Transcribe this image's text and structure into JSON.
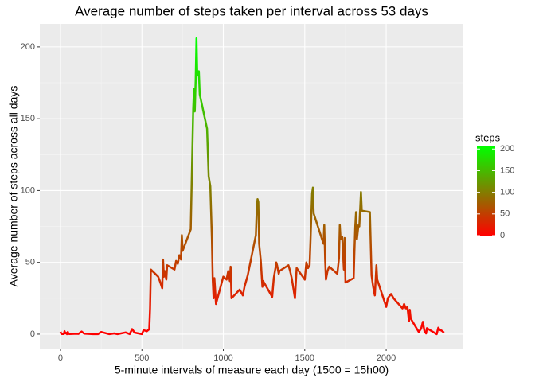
{
  "chart_data": {
    "type": "line",
    "title": "Average number of steps taken per interval across 53 days",
    "x_label": "5-minute intervals of measure each day (1500 = 15h00)",
    "y_label": "Average number of steps across all days",
    "x": [
      0,
      5,
      10,
      15,
      20,
      25,
      30,
      35,
      40,
      45,
      50,
      55,
      100,
      110,
      130,
      145,
      200,
      230,
      250,
      300,
      330,
      350,
      400,
      425,
      440,
      455,
      500,
      510,
      530,
      545,
      550,
      555,
      600,
      610,
      625,
      630,
      635,
      640,
      650,
      655,
      700,
      710,
      720,
      730,
      740,
      745,
      750,
      800,
      810,
      815,
      820,
      825,
      830,
      835,
      840,
      845,
      850,
      855,
      900,
      910,
      920,
      930,
      935,
      940,
      945,
      955,
      1000,
      1020,
      1030,
      1040,
      1045,
      1050,
      1100,
      1120,
      1130,
      1150,
      1200,
      1205,
      1210,
      1215,
      1220,
      1230,
      1240,
      1245,
      1300,
      1310,
      1320,
      1325,
      1330,
      1340,
      1345,
      1400,
      1410,
      1420,
      1430,
      1440,
      1450,
      1500,
      1510,
      1520,
      1530,
      1535,
      1540,
      1545,
      1550,
      1555,
      1615,
      1620,
      1625,
      1630,
      1640,
      1650,
      1700,
      1710,
      1715,
      1720,
      1730,
      1740,
      1745,
      1750,
      1800,
      1805,
      1810,
      1815,
      1820,
      1830,
      1835,
      1840,
      1845,
      1850,
      1900,
      1910,
      1920,
      1930,
      1940,
      1945,
      2000,
      2010,
      2030,
      2045,
      2100,
      2110,
      2120,
      2125,
      2130,
      2140,
      2145,
      2150,
      2200,
      2215,
      2225,
      2235,
      2245,
      2250,
      2310,
      2320,
      2330,
      2340,
      2350,
      2355
    ],
    "values": [
      1.7,
      0.3,
      0.1,
      0.2,
      0.1,
      2.1,
      0.5,
      0.9,
      0,
      1.5,
      0.3,
      0.1,
      0.3,
      0.2,
      1.8,
      0.4,
      0,
      0,
      1.5,
      0,
      0.5,
      0,
      1.2,
      0.1,
      3.5,
      1.1,
      0,
      2.8,
      2.1,
      3.4,
      18,
      45,
      40,
      37,
      32,
      52,
      40,
      44,
      38,
      48,
      45,
      51,
      49,
      55,
      52,
      69,
      58,
      73,
      130,
      157,
      171,
      155,
      177,
      206,
      180,
      183,
      183,
      167,
      143,
      110,
      103,
      66,
      38,
      25,
      39,
      21,
      40,
      38,
      44,
      37,
      47,
      25,
      31,
      27,
      33,
      41,
      69,
      87,
      94,
      92,
      63,
      51,
      33,
      37,
      26,
      39,
      46,
      50,
      48,
      42,
      44,
      48,
      44,
      39,
      32,
      25,
      46,
      38,
      50,
      46,
      48,
      65,
      82,
      98,
      102,
      84,
      63,
      76,
      52,
      38,
      44,
      47,
      42,
      53,
      76,
      66,
      68,
      45,
      67,
      36,
      39,
      58,
      75,
      85,
      66,
      76,
      75,
      86,
      99,
      86,
      85,
      41,
      33,
      27,
      48,
      38,
      19,
      25,
      28,
      25,
      18,
      21,
      18,
      18,
      19,
      9,
      17,
      11,
      1.5,
      3.9,
      8.6,
      2.2,
      0.5,
      4.2,
      0,
      4.5,
      2.9,
      2.5,
      1.5,
      1
    ],
    "xlim": [
      -127,
      2469
    ],
    "xticks": [
      0,
      500,
      1000,
      1500,
      2000
    ],
    "ylim": [
      -10,
      216
    ],
    "yticks": [
      0,
      50,
      100,
      150,
      200
    ],
    "grid": true,
    "color_scale": {
      "title": "steps",
      "low": "#ff0000",
      "high": "#00ff00",
      "lim": [
        0,
        206
      ],
      "ticks": [
        0,
        50,
        100,
        150,
        200
      ]
    }
  }
}
